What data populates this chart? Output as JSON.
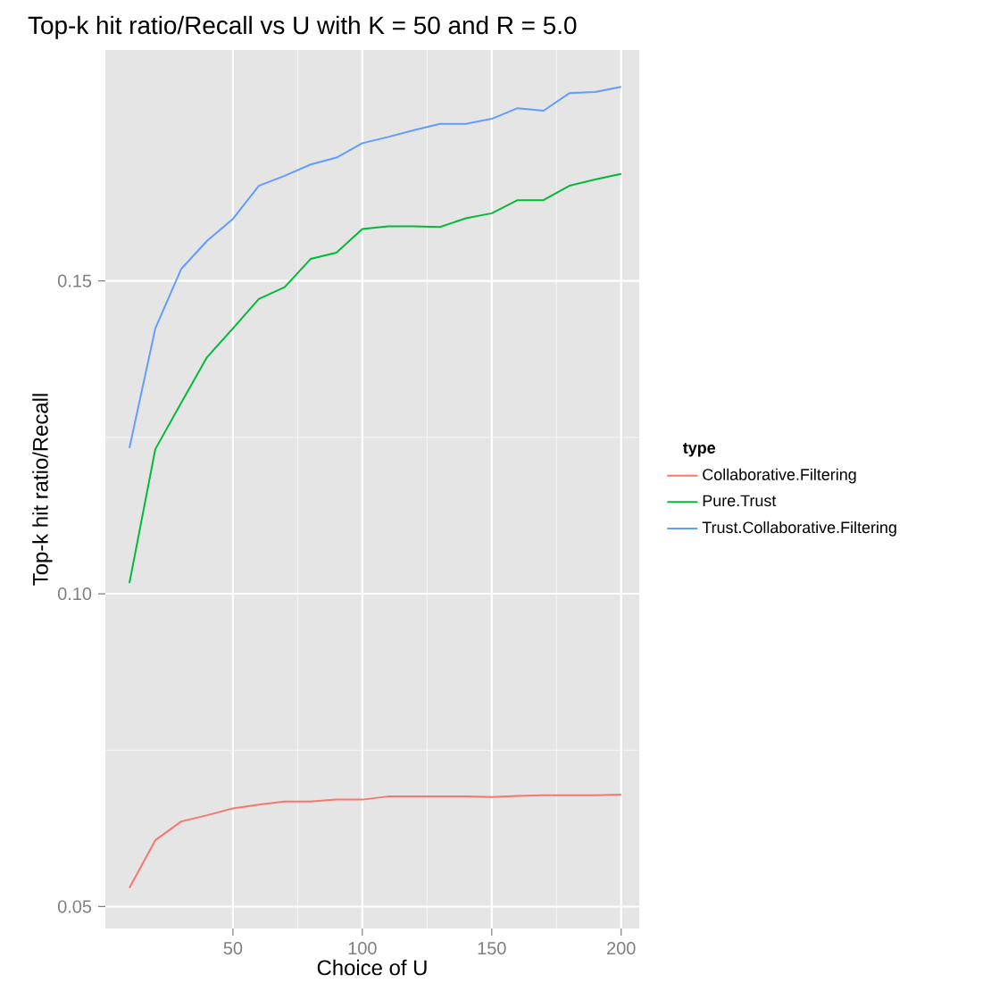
{
  "chart_data": {
    "type": "line",
    "title": "Top-k hit ratio/Recall vs U with K = 50 and R = 5.0",
    "xlabel": "Choice of U",
    "ylabel": "Top-k hit ratio/Recall",
    "legend_title": "type",
    "x": [
      10,
      20,
      30,
      40,
      50,
      60,
      70,
      80,
      90,
      100,
      110,
      120,
      130,
      140,
      150,
      160,
      170,
      180,
      190,
      200
    ],
    "series": [
      {
        "name": "Collaborative.Filtering",
        "color": "#f8766d",
        "values": [
          0.053,
          0.0606,
          0.0636,
          0.0646,
          0.0657,
          0.0663,
          0.0668,
          0.0668,
          0.0671,
          0.0671,
          0.0676,
          0.0676,
          0.0676,
          0.0676,
          0.0675,
          0.0677,
          0.0678,
          0.0678,
          0.0678,
          0.0679
        ]
      },
      {
        "name": "Pure.Trust",
        "color": "#00ba38",
        "values": [
          0.1017,
          0.1231,
          0.1305,
          0.1378,
          0.1424,
          0.1471,
          0.149,
          0.1535,
          0.1545,
          0.1583,
          0.1587,
          0.1587,
          0.1586,
          0.16,
          0.1608,
          0.1629,
          0.1629,
          0.1652,
          0.1662,
          0.1671
        ]
      },
      {
        "name": "Trust.Collaborative.Filtering",
        "color": "#619cff",
        "values": [
          0.1233,
          0.1424,
          0.1519,
          0.1564,
          0.1599,
          0.1652,
          0.1668,
          0.1686,
          0.1697,
          0.172,
          0.173,
          0.1741,
          0.1751,
          0.1751,
          0.1759,
          0.1776,
          0.1772,
          0.18,
          0.1802,
          0.181
        ]
      }
    ],
    "xlim": [
      0.7,
      207
    ],
    "ylim": [
      0.0465,
      0.1869
    ],
    "xticks": [
      50,
      100,
      150,
      200
    ],
    "yticks": [
      0.05,
      {
        "value": 0.1,
        "label": "0.10"
      },
      0.15
    ],
    "grid": true,
    "legend": "right",
    "line_style": "solid",
    "marker": "none"
  }
}
